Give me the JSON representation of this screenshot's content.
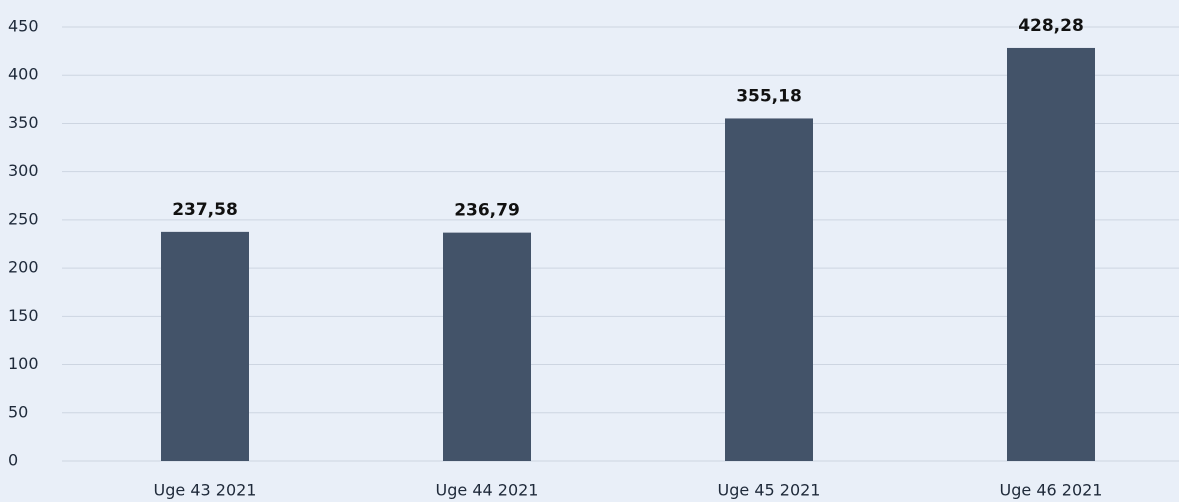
{
  "chart_data": {
    "type": "bar",
    "categories": [
      "Uge 43 2021",
      "Uge 44 2021",
      "Uge 45 2021",
      "Uge 46 2021"
    ],
    "values": [
      237.58,
      236.79,
      355.18,
      428.28
    ],
    "value_labels": [
      "237,58",
      "236,79",
      "355,18",
      "428,28"
    ],
    "color": "#435369",
    "ylim": [
      0,
      450
    ],
    "yticks": [
      0,
      50,
      100,
      150,
      200,
      250,
      300,
      350,
      400,
      450
    ],
    "grid": true
  }
}
